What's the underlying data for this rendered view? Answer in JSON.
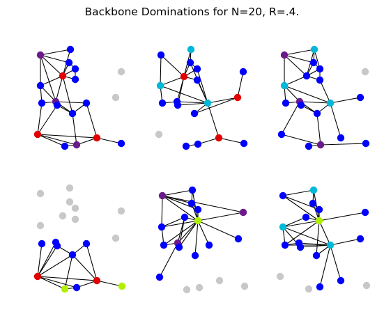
{
  "title": "Backbone Dominations for N=20, R=.4.",
  "colors": {
    "blue": "#0000ff",
    "gray": "#c8c8c8",
    "red": "#e00000",
    "purple": "#6a1a8a",
    "cyan": "#00b8d8",
    "lime": "#b0f000"
  },
  "panels": [
    {
      "id": "a"
    },
    {
      "id": "b"
    },
    {
      "id": "c"
    },
    {
      "id": "d"
    },
    {
      "id": "e"
    },
    {
      "id": "f"
    }
  ]
}
